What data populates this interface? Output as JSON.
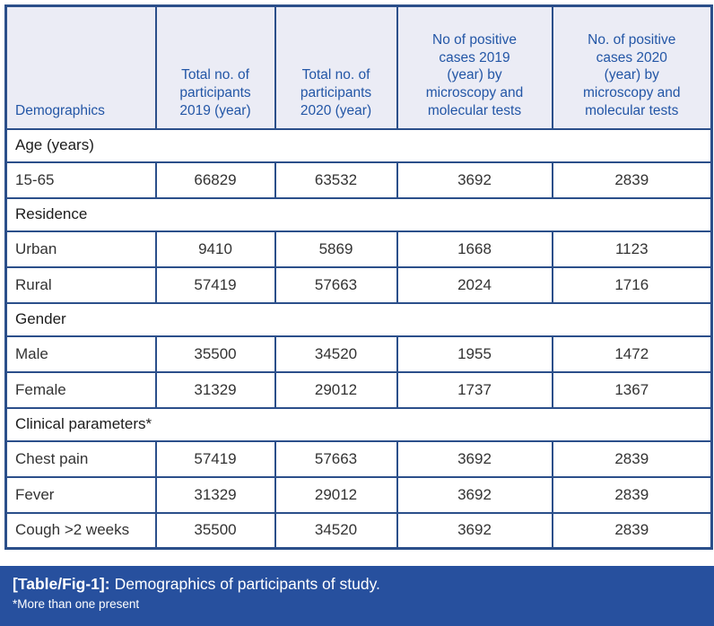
{
  "table": {
    "columns": [
      {
        "name": "demographics",
        "lines": [
          "Demographics"
        ]
      },
      {
        "name": "total-participants-2019",
        "lines": [
          "Total no. of",
          "participants",
          "2019 (year)"
        ]
      },
      {
        "name": "total-participants-2020",
        "lines": [
          "Total no. of",
          "participants",
          "2020 (year)"
        ]
      },
      {
        "name": "positive-cases-2019",
        "lines": [
          "No of positive",
          "cases 2019",
          "(year) by",
          "microscopy and",
          "molecular tests"
        ]
      },
      {
        "name": "positive-cases-2020",
        "lines": [
          "No. of positive",
          "cases 2020",
          "(year) by",
          "microscopy and",
          "molecular tests"
        ]
      }
    ],
    "sections": [
      {
        "title": "Age (years)",
        "rows": [
          {
            "label": "15-65",
            "values": [
              "66829",
              "63532",
              "3692",
              "2839"
            ]
          }
        ]
      },
      {
        "title": "Residence",
        "rows": [
          {
            "label": "Urban",
            "values": [
              "9410",
              "5869",
              "1668",
              "1123"
            ]
          },
          {
            "label": "Rural",
            "values": [
              "57419",
              "57663",
              "2024",
              "1716"
            ]
          }
        ]
      },
      {
        "title": "Gender",
        "rows": [
          {
            "label": "Male",
            "values": [
              "35500",
              "34520",
              "1955",
              "1472"
            ]
          },
          {
            "label": "Female",
            "values": [
              "31329",
              "29012",
              "1737",
              "1367"
            ]
          }
        ]
      },
      {
        "title": "Clinical parameters*",
        "rows": [
          {
            "label": "Chest pain",
            "values": [
              "57419",
              "57663",
              "3692",
              "2839"
            ]
          },
          {
            "label": "Fever",
            "values": [
              "31329",
              "29012",
              "3692",
              "2839"
            ]
          },
          {
            "label": "Cough >2 weeks",
            "values": [
              "35500",
              "34520",
              "3692",
              "2839"
            ]
          }
        ]
      }
    ]
  },
  "caption": {
    "tag": "[Table/Fig-1]:",
    "text": "Demographics of participants of study.",
    "footnote": "*More than one present"
  },
  "colors": {
    "border_blue": "#2b4f8a",
    "header_bg": "#ebecf5",
    "header_text": "#2356a6",
    "body_text": "#333333",
    "caption_bg": "#27509e",
    "caption_text": "#ffffff"
  }
}
